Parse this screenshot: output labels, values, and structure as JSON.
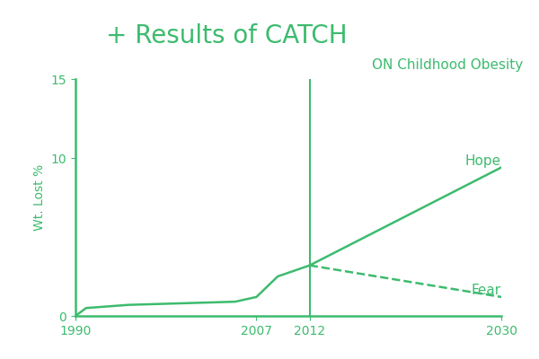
{
  "chart_data": {
    "type": "line",
    "title": "+ Results of CATCH",
    "subtitle": "ON Childhood Obesity",
    "y_label": "Wt. Lost %",
    "xlim": [
      1990,
      2030
    ],
    "xticks": [
      1990,
      2007,
      2012,
      2030
    ],
    "ylim": [
      0,
      15
    ],
    "yticks": [
      0,
      10,
      15
    ],
    "grid": false,
    "color": "#3dbb6e",
    "series": [
      {
        "name": null,
        "x": [
          1990,
          1991,
          1995,
          2000,
          2005,
          2007,
          2009,
          2012
        ],
        "values": [
          0,
          0.5,
          0.7,
          0.8,
          0.9,
          1.2,
          2.5,
          3.2
        ],
        "line_style": "solid"
      },
      {
        "name": "Hope",
        "x": [
          2012,
          2030
        ],
        "values": [
          3.2,
          9.4
        ],
        "line_style": "solid"
      },
      {
        "name": "Fear",
        "x": [
          2012,
          2030
        ],
        "values": [
          3.2,
          1.2
        ],
        "line_style": "dashed"
      }
    ]
  }
}
